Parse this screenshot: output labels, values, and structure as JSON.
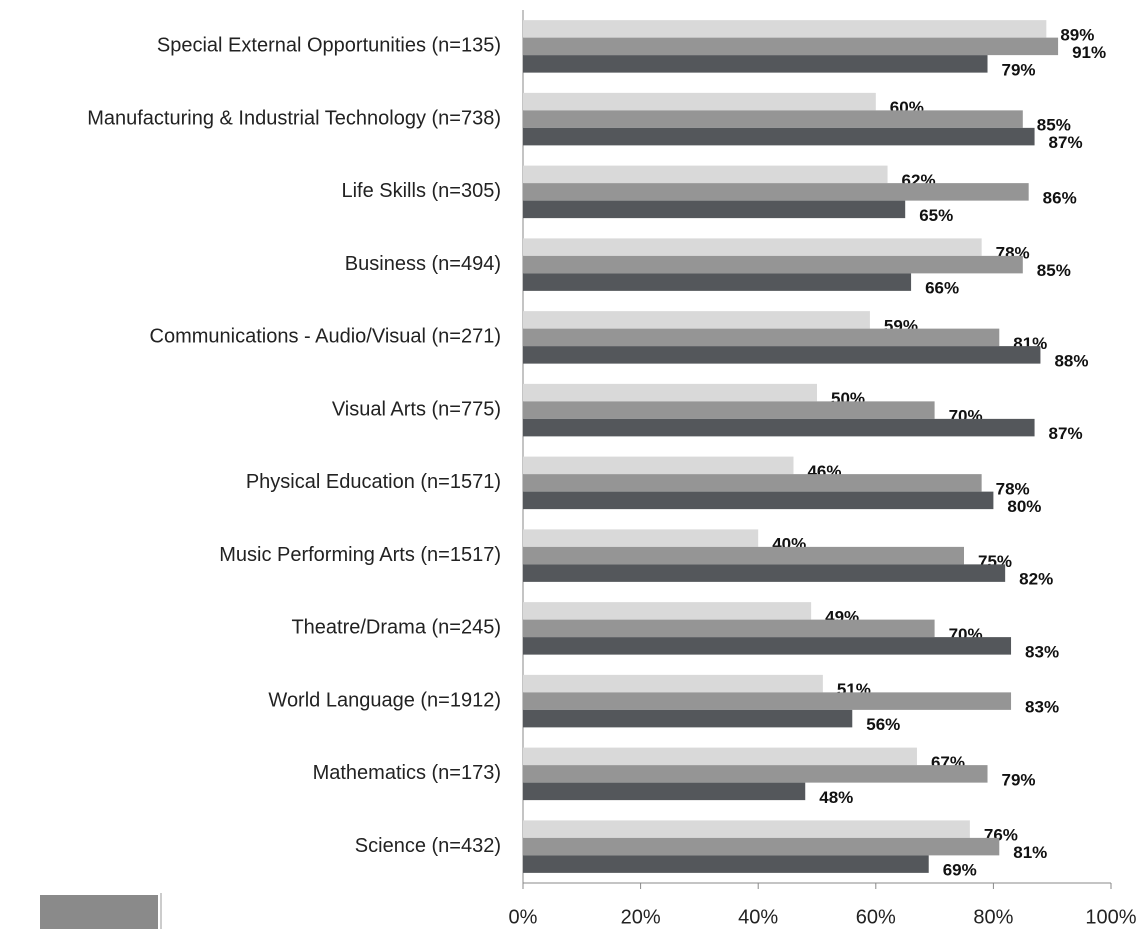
{
  "chart_data": {
    "type": "hbar",
    "categories": [
      "Special External Opportunities (n=135)",
      "Manufacturing & Industrial Technology (n=738)",
      "Life Skills (n=305)",
      "Business (n=494)",
      "Communications - Audio/Visual (n=271)",
      "Visual Arts (n=775)",
      "Physical Education (n=1571)",
      "Music Performing Arts (n=1517)",
      "Theatre/Drama (n=245)",
      "World Language (n=1912)",
      "Mathematics (n=173)",
      "Science (n=432)"
    ],
    "series": [
      {
        "color": "#d9d9d9",
        "values": [
          89,
          60,
          62,
          78,
          59,
          50,
          46,
          40,
          49,
          51,
          67,
          76
        ],
        "value_labels": [
          "89%",
          "60%",
          "62%",
          "78%",
          "59%",
          "50%",
          "46%",
          "40%",
          "49%",
          "51%",
          "67%",
          "76%"
        ]
      },
      {
        "color": "#959595",
        "values": [
          91,
          85,
          86,
          85,
          81,
          70,
          78,
          75,
          70,
          83,
          79,
          81
        ],
        "value_labels": [
          "91%",
          "85%",
          "86%",
          "85%",
          "81%",
          "70%",
          "78%",
          "75%",
          "70%",
          "83%",
          "79%",
          "81%"
        ]
      },
      {
        "color": "#54575b",
        "values": [
          79,
          87,
          65,
          66,
          88,
          87,
          80,
          82,
          83,
          56,
          48,
          69
        ],
        "value_labels": [
          "79%",
          "87%",
          "65%",
          "66%",
          "88%",
          "87%",
          "80%",
          "82%",
          "83%",
          "56%",
          "48%",
          "69%"
        ]
      }
    ],
    "xlim": [
      0,
      100
    ],
    "xticks": [
      {
        "value": 0,
        "label": "0%"
      },
      {
        "value": 20,
        "label": "20%"
      },
      {
        "value": 40,
        "label": "40%"
      },
      {
        "value": 60,
        "label": "60%"
      },
      {
        "value": 80,
        "label": "80%"
      },
      {
        "value": 100,
        "label": "100%"
      }
    ]
  }
}
